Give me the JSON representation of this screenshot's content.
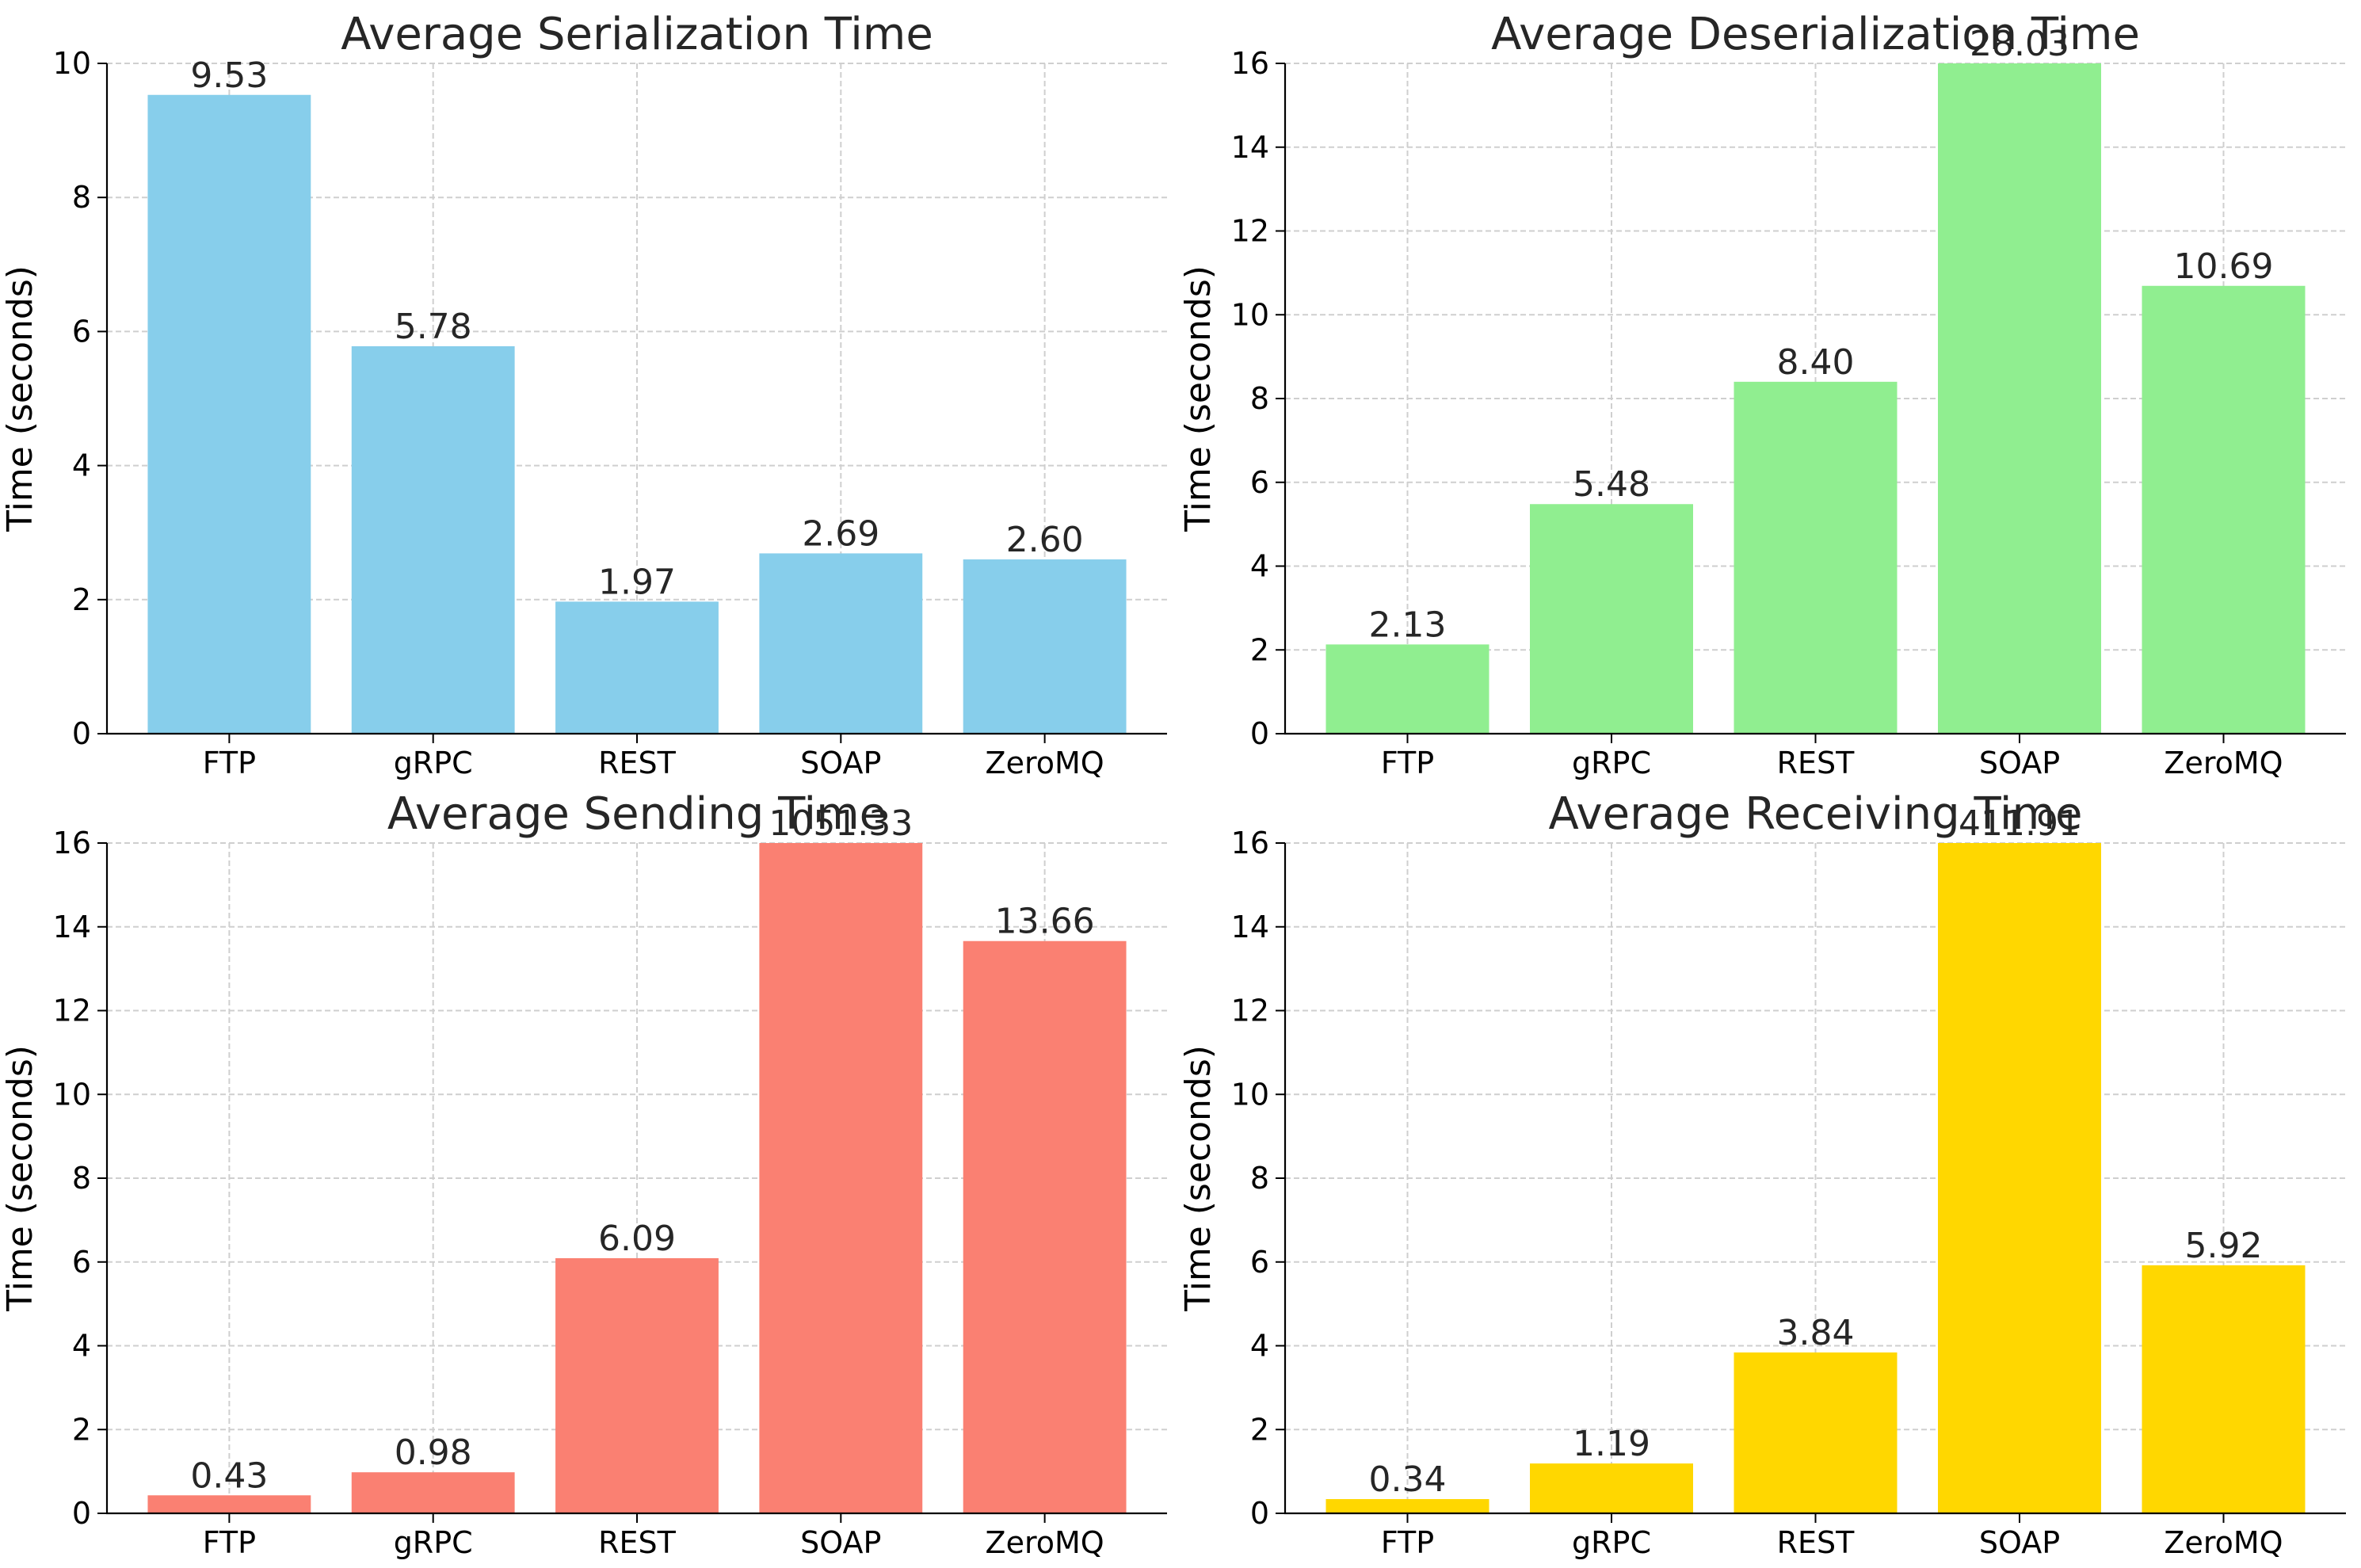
{
  "chart_data": [
    {
      "type": "bar",
      "title": "Average Serialization Time",
      "xlabel": "",
      "ylabel": "Time (seconds)",
      "categories": [
        "FTP",
        "gRPC",
        "REST",
        "SOAP",
        "ZeroMQ"
      ],
      "values": [
        9.53,
        5.78,
        1.97,
        2.69,
        2.6
      ],
      "value_labels": [
        "9.53",
        "5.78",
        "1.97",
        "2.69",
        "2.60"
      ],
      "yticks": [
        "0",
        "2",
        "4",
        "6",
        "8",
        "10"
      ],
      "ylim": [
        0,
        10
      ],
      "grid": true,
      "color": "#87ceeb"
    },
    {
      "type": "bar",
      "title": "Average Deserialization Time",
      "xlabel": "",
      "ylabel": "Time (seconds)",
      "categories": [
        "FTP",
        "gRPC",
        "REST",
        "SOAP",
        "ZeroMQ"
      ],
      "values": [
        2.13,
        5.48,
        8.4,
        28.03,
        10.69
      ],
      "value_labels": [
        "2.13",
        "5.48",
        "8.40",
        "28.03",
        "10.69"
      ],
      "yticks": [
        "0",
        "2",
        "4",
        "6",
        "8",
        "10",
        "12",
        "14",
        "16"
      ],
      "ylim": [
        0,
        16
      ],
      "grid": true,
      "color": "#90ee90"
    },
    {
      "type": "bar",
      "title": "Average Sending Time",
      "xlabel": "",
      "ylabel": "Time (seconds)",
      "categories": [
        "FTP",
        "gRPC",
        "REST",
        "SOAP",
        "ZeroMQ"
      ],
      "values": [
        0.43,
        0.98,
        6.09,
        1051.33,
        13.66
      ],
      "value_labels": [
        "0.43",
        "0.98",
        "6.09",
        "1051.33",
        "13.66"
      ],
      "yticks": [
        "0",
        "2",
        "4",
        "6",
        "8",
        "10",
        "12",
        "14",
        "16"
      ],
      "ylim": [
        0,
        16
      ],
      "grid": true,
      "color": "#fa8072"
    },
    {
      "type": "bar",
      "title": "Average Receiving Time",
      "xlabel": "",
      "ylabel": "Time (seconds)",
      "categories": [
        "FTP",
        "gRPC",
        "REST",
        "SOAP",
        "ZeroMQ"
      ],
      "values": [
        0.34,
        1.19,
        3.84,
        411.91,
        5.92
      ],
      "value_labels": [
        "0.34",
        "1.19",
        "3.84",
        "411.91",
        "5.92"
      ],
      "yticks": [
        "0",
        "2",
        "4",
        "6",
        "8",
        "10",
        "12",
        "14",
        "16"
      ],
      "ylim": [
        0,
        16
      ],
      "grid": true,
      "color": "#ffd700"
    }
  ]
}
